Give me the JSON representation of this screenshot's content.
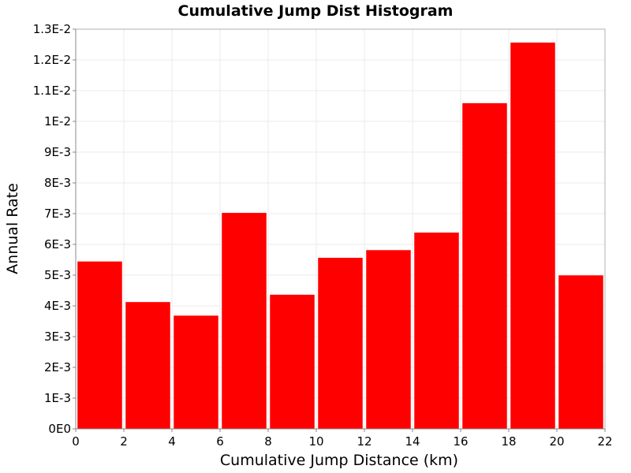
{
  "chart_data": {
    "type": "bar",
    "title": "Cumulative Jump Dist Histogram",
    "xlabel": "Cumulative Jump Distance (km)",
    "ylabel": "Annual Rate",
    "xlim": [
      0,
      22
    ],
    "ylim": [
      0,
      0.013
    ],
    "bin_width": 2,
    "x": [
      1,
      3,
      5,
      7,
      9,
      11,
      13,
      15,
      17,
      19,
      21
    ],
    "values": [
      0.00545,
      0.00413,
      0.00369,
      0.00703,
      0.00437,
      0.00557,
      0.00582,
      0.00639,
      0.0106,
      0.01257,
      0.005
    ],
    "x_ticks": [
      0,
      2,
      4,
      6,
      8,
      10,
      12,
      14,
      16,
      18,
      20,
      22
    ],
    "x_tick_labels": [
      "0",
      "2",
      "4",
      "6",
      "8",
      "10",
      "12",
      "14",
      "16",
      "18",
      "20",
      "22"
    ],
    "y_ticks": [
      0,
      0.001,
      0.002,
      0.003,
      0.004,
      0.005,
      0.006,
      0.007,
      0.008,
      0.009,
      0.01,
      0.011,
      0.012,
      0.013
    ],
    "y_tick_labels": [
      "0E0",
      "1E-3",
      "2E-3",
      "3E-3",
      "4E-3",
      "5E-3",
      "6E-3",
      "7E-3",
      "8E-3",
      "9E-3",
      "1E-2",
      "1.1E-2",
      "1.2E-2",
      "1.3E-2"
    ],
    "grid": true,
    "bar_color": "#ff0000"
  }
}
